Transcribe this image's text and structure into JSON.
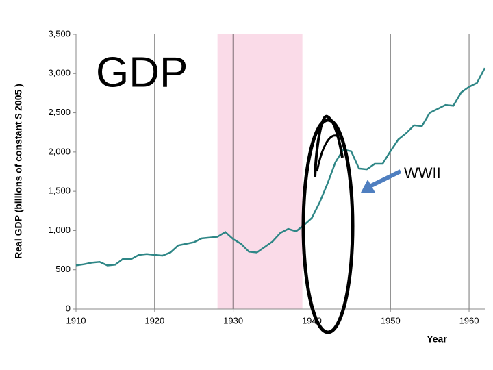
{
  "chart_data": {
    "type": "line",
    "y_label": "Real GDP (billions of constant $ 2005 )",
    "x_label": "Year",
    "annotations": [
      "GDP",
      "WWII"
    ],
    "x": [
      1910,
      1911,
      1912,
      1913,
      1914,
      1915,
      1916,
      1917,
      1918,
      1919,
      1920,
      1921,
      1922,
      1923,
      1924,
      1925,
      1926,
      1927,
      1928,
      1929,
      1930,
      1931,
      1932,
      1933,
      1934,
      1935,
      1936,
      1937,
      1938,
      1939,
      1940,
      1941,
      1942,
      1943,
      1944,
      1945,
      1946,
      1947,
      1948,
      1949,
      1950,
      1951,
      1952,
      1953,
      1954,
      1955,
      1956,
      1957,
      1958,
      1959,
      1960,
      1961,
      1962
    ],
    "series": [
      {
        "color": "#2e8686",
        "values": [
          555,
          570,
          590,
          600,
          555,
          565,
          640,
          635,
          690,
          700,
          690,
          680,
          720,
          810,
          830,
          850,
          900,
          910,
          920,
          980,
          890,
          830,
          730,
          720,
          790,
          860,
          970,
          1020,
          990,
          1070,
          1160,
          1360,
          1600,
          1870,
          2030,
          2010,
          1790,
          1780,
          1850,
          1850,
          2010,
          2160,
          2240,
          2340,
          2330,
          2500,
          2550,
          2600,
          2590,
          2760,
          2830,
          2880,
          3070
        ]
      }
    ],
    "xlim": [
      1910,
      1962
    ],
    "ylim": [
      0,
      3500
    ],
    "xticks": [
      1910,
      1920,
      1930,
      1940,
      1950,
      1960
    ],
    "yticks": [
      0,
      500,
      {
        "value": 1000,
        "label": "1,000"
      },
      {
        "value": 1500,
        "label": "1,500"
      },
      {
        "value": 2000,
        "label": "2,000"
      },
      {
        "value": 2500,
        "label": "2,500"
      },
      {
        "value": 3000,
        "label": "3,000"
      },
      {
        "value": 3500,
        "label": "3,500"
      }
    ],
    "highlight": {
      "x0": 1928,
      "x1": 1938.8,
      "color": "#fadbe8"
    },
    "grid": "x"
  }
}
